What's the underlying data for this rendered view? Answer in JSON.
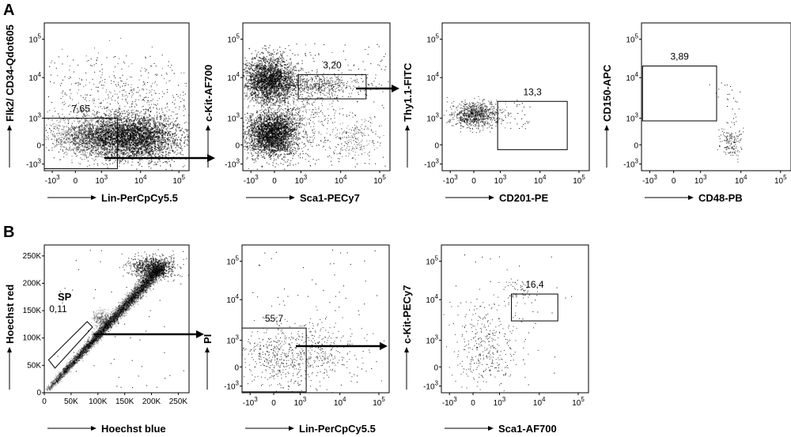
{
  "panel_labels": [
    "A",
    "B"
  ],
  "chart_data": [
    {
      "id": "a1",
      "type": "scatter",
      "xlabel": "Lin-PerCpCy5.5",
      "ylabel": "Flk2/ CD34-Qdot605",
      "x_scale": "biexponential",
      "y_scale": "biexponential",
      "xticks": [
        "-10^3",
        "0",
        "10^3",
        "10^4",
        "10^5"
      ],
      "yticks": [
        "-10^3",
        "0",
        "10^3",
        "10^4",
        "10^5"
      ],
      "gates": [
        {
          "label": "7,65",
          "x_range": [
            -3000,
            1800
          ],
          "y_range": [
            -1800,
            1000
          ]
        }
      ],
      "arrow_to": "a2"
    },
    {
      "id": "a2",
      "type": "scatter",
      "xlabel": "Sca1-PECy7",
      "ylabel": "c-Kit-AF700",
      "x_scale": "biexponential",
      "y_scale": "biexponential",
      "xticks": [
        "-10^3",
        "0",
        "10^3",
        "10^4",
        "10^5"
      ],
      "yticks": [
        "-10^3",
        "0",
        "10^3",
        "10^4",
        "10^5"
      ],
      "gates": [
        {
          "label": "3,20",
          "x_range": [
            900,
            45000
          ],
          "y_range": [
            3000,
            12000
          ]
        }
      ],
      "arrow_to": "a3"
    },
    {
      "id": "a3",
      "type": "scatter",
      "xlabel": "CD201-PE",
      "ylabel": "Thy1.1-FITC",
      "x_scale": "biexponential",
      "y_scale": "biexponential",
      "xticks": [
        "-10^3",
        "0",
        "10^3",
        "10^4",
        "10^5"
      ],
      "yticks": [
        "-10^3",
        "0",
        "10^3",
        "10^4",
        "10^5"
      ],
      "gates": [
        {
          "label": "13,3",
          "x_range": [
            900,
            50000
          ],
          "y_range": [
            -250,
            2600
          ]
        }
      ]
    },
    {
      "id": "a4",
      "type": "scatter",
      "xlabel": "CD48-PB",
      "ylabel": "CD150-APC",
      "x_scale": "biexponential",
      "y_scale": "biexponential",
      "xticks": [
        "-10^3",
        "0",
        "10^3",
        "10^4",
        "10^5"
      ],
      "yticks": [
        "-10^3",
        "0",
        "10^3",
        "10^4",
        "10^5"
      ],
      "gates": [
        {
          "label": "3,89",
          "x_range": [
            -2000,
            2500
          ],
          "y_range": [
            900,
            20000
          ]
        }
      ]
    },
    {
      "id": "b1",
      "type": "scatter",
      "xlabel": "Hoechst blue",
      "ylabel": "Hoechst red",
      "x_scale": "linear",
      "y_scale": "linear",
      "xlim": [
        0,
        270000
      ],
      "ylim": [
        0,
        270000
      ],
      "xticks": [
        "0",
        "50K",
        "100K",
        "150K",
        "200K",
        "250K"
      ],
      "yticks": [
        "0",
        "50K",
        "100K",
        "150K",
        "200K",
        "250K"
      ],
      "annotation": "SP",
      "gates": [
        {
          "label": "0,11",
          "shape": "polygon",
          "vertices": [
            [
              8000,
              60000
            ],
            [
              20000,
              45000
            ],
            [
              90000,
              120000
            ],
            [
              80000,
              130000
            ]
          ]
        }
      ],
      "arrow_to": "b2"
    },
    {
      "id": "b2",
      "type": "scatter",
      "xlabel": "Lin-PerCpCy5.5",
      "ylabel": "PI",
      "x_scale": "biexponential",
      "y_scale": "biexponential",
      "xticks": [
        "-10^3",
        "0",
        "10^3",
        "10^4",
        "10^5"
      ],
      "yticks": [
        "-10^3",
        "0",
        "10^3",
        "10^4",
        "10^5"
      ],
      "gates": [
        {
          "label": "55,7",
          "x_range": [
            -3000,
            1000
          ],
          "y_range": [
            -2000,
            2000
          ]
        }
      ],
      "arrow_to": "b3"
    },
    {
      "id": "b3",
      "type": "scatter",
      "xlabel": "Sca1-AF700",
      "ylabel": "c-Kit-PECy7",
      "x_scale": "biexponential",
      "y_scale": "biexponential",
      "xticks": [
        "-10^3",
        "0",
        "10^3",
        "10^4",
        "10^5"
      ],
      "yticks": [
        "-10^3",
        "0",
        "10^3",
        "10^4",
        "10^5"
      ],
      "gates": [
        {
          "label": "16,4",
          "x_range": [
            2000,
            30000
          ],
          "y_range": [
            3000,
            14000
          ]
        }
      ]
    }
  ]
}
